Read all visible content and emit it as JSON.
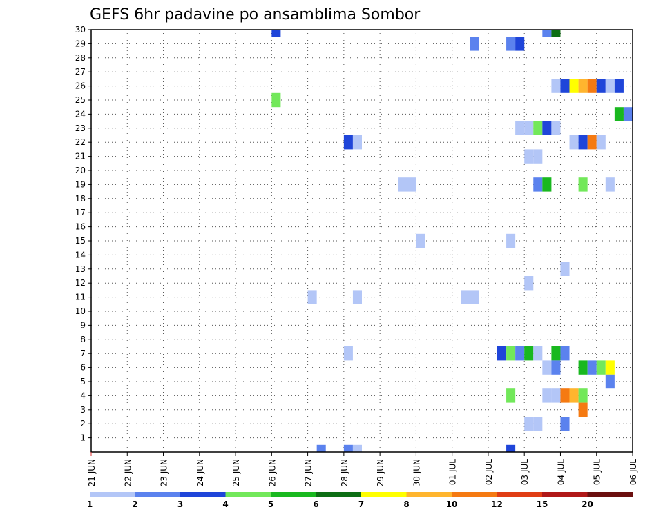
{
  "chart_data": {
    "type": "heatmap",
    "title": "GEFS 6hr padavine po ansamblima Sombor",
    "xlabel": "",
    "ylabel": "",
    "x_tick_labels": [
      "21 JUN",
      "22 JUN",
      "23 JUN",
      "24 JUN",
      "25 JUN",
      "26 JUN",
      "27 JUN",
      "28 JUN",
      "29 JUN",
      "30 JUN",
      "01 JUL",
      "02 JUL",
      "03 JUL",
      "04 JUL",
      "05 JUL",
      "06 JUL"
    ],
    "y_tick_labels": [
      "1",
      "2",
      "3",
      "4",
      "5",
      "6",
      "7",
      "8",
      "9",
      "10",
      "11",
      "12",
      "13",
      "14",
      "15",
      "16",
      "17",
      "18",
      "19",
      "20",
      "21",
      "22",
      "23",
      "24",
      "25",
      "26",
      "27",
      "28",
      "29",
      "30"
    ],
    "x_range_days": [
      0,
      15
    ],
    "x_step_hours": 6,
    "y_range": [
      0,
      30
    ],
    "grid": true,
    "colorbar": {
      "labels": [
        "1",
        "2",
        "3",
        "4",
        "5",
        "6",
        "7",
        "8",
        "10",
        "12",
        "15",
        "20"
      ],
      "colors": [
        "#b3c6f7",
        "#5b82ee",
        "#1f45d9",
        "#72e85a",
        "#19b81f",
        "#0d6e14",
        "#ffff00",
        "#ffb52e",
        "#f57a12",
        "#e03d14",
        "#b01818",
        "#6b0f0f"
      ]
    },
    "cells": [
      {
        "member": 30,
        "t": 20,
        "c": 2
      },
      {
        "member": 30,
        "t": 50,
        "c": 1
      },
      {
        "member": 30,
        "t": 51,
        "c": 5
      },
      {
        "member": 29,
        "t": 42,
        "c": 1
      },
      {
        "member": 29,
        "t": 46,
        "c": 1
      },
      {
        "member": 29,
        "t": 47,
        "c": 2
      },
      {
        "member": 26,
        "t": 51,
        "c": 0
      },
      {
        "member": 26,
        "t": 52,
        "c": 2
      },
      {
        "member": 26,
        "t": 53,
        "c": 6
      },
      {
        "member": 26,
        "t": 54,
        "c": 7
      },
      {
        "member": 26,
        "t": 55,
        "c": 8
      },
      {
        "member": 26,
        "t": 56,
        "c": 2
      },
      {
        "member": 26,
        "t": 57,
        "c": 0
      },
      {
        "member": 26,
        "t": 58,
        "c": 2
      },
      {
        "member": 26,
        "t": 60,
        "c": 4
      },
      {
        "member": 25,
        "t": 20,
        "c": 3
      },
      {
        "member": 24,
        "t": 58,
        "c": 4
      },
      {
        "member": 24,
        "t": 59,
        "c": 1
      },
      {
        "member": 24,
        "t": 60,
        "c": 4
      },
      {
        "member": 24,
        "t": 61,
        "c": 3
      },
      {
        "member": 23,
        "t": 47,
        "c": 0
      },
      {
        "member": 23,
        "t": 48,
        "c": 0
      },
      {
        "member": 23,
        "t": 49,
        "c": 3
      },
      {
        "member": 23,
        "t": 50,
        "c": 2
      },
      {
        "member": 23,
        "t": 51,
        "c": 0
      },
      {
        "member": 22,
        "t": 28,
        "c": 2
      },
      {
        "member": 22,
        "t": 29,
        "c": 0
      },
      {
        "member": 22,
        "t": 53,
        "c": 0
      },
      {
        "member": 22,
        "t": 54,
        "c": 2
      },
      {
        "member": 22,
        "t": 55,
        "c": 8
      },
      {
        "member": 22,
        "t": 56,
        "c": 0
      },
      {
        "member": 21,
        "t": 48,
        "c": 0
      },
      {
        "member": 21,
        "t": 49,
        "c": 0
      },
      {
        "member": 19,
        "t": 34,
        "c": 0
      },
      {
        "member": 19,
        "t": 35,
        "c": 0
      },
      {
        "member": 19,
        "t": 49,
        "c": 1
      },
      {
        "member": 19,
        "t": 50,
        "c": 4
      },
      {
        "member": 19,
        "t": 54,
        "c": 3
      },
      {
        "member": 19,
        "t": 57,
        "c": 0
      },
      {
        "member": 16,
        "t": 60,
        "c": 0
      },
      {
        "member": 15,
        "t": 36,
        "c": 0
      },
      {
        "member": 15,
        "t": 46,
        "c": 0
      },
      {
        "member": 13,
        "t": 52,
        "c": 0
      },
      {
        "member": 12,
        "t": 48,
        "c": 0
      },
      {
        "member": 11,
        "t": 24,
        "c": 0
      },
      {
        "member": 11,
        "t": 29,
        "c": 0
      },
      {
        "member": 11,
        "t": 41,
        "c": 0
      },
      {
        "member": 11,
        "t": 42,
        "c": 0
      },
      {
        "member": 7,
        "t": 28,
        "c": 0
      },
      {
        "member": 7,
        "t": 45,
        "c": 2
      },
      {
        "member": 7,
        "t": 46,
        "c": 3
      },
      {
        "member": 7,
        "t": 47,
        "c": 1
      },
      {
        "member": 7,
        "t": 48,
        "c": 4
      },
      {
        "member": 7,
        "t": 49,
        "c": 0
      },
      {
        "member": 7,
        "t": 51,
        "c": 4
      },
      {
        "member": 7,
        "t": 52,
        "c": 1
      },
      {
        "member": 6,
        "t": 50,
        "c": 0
      },
      {
        "member": 6,
        "t": 51,
        "c": 1
      },
      {
        "member": 6,
        "t": 54,
        "c": 4
      },
      {
        "member": 6,
        "t": 55,
        "c": 1
      },
      {
        "member": 6,
        "t": 56,
        "c": 3
      },
      {
        "member": 6,
        "t": 57,
        "c": 6
      },
      {
        "member": 5,
        "t": 57,
        "c": 1
      },
      {
        "member": 4,
        "t": 46,
        "c": 3
      },
      {
        "member": 4,
        "t": 50,
        "c": 0
      },
      {
        "member": 4,
        "t": 51,
        "c": 0
      },
      {
        "member": 4,
        "t": 52,
        "c": 8
      },
      {
        "member": 4,
        "t": 53,
        "c": 7
      },
      {
        "member": 4,
        "t": 54,
        "c": 3
      },
      {
        "member": 3,
        "t": 54,
        "c": 8
      },
      {
        "member": 2,
        "t": 48,
        "c": 0
      },
      {
        "member": 2,
        "t": 49,
        "c": 0
      },
      {
        "member": 2,
        "t": 52,
        "c": 1
      },
      {
        "member": 0,
        "t": 25,
        "c": 1
      },
      {
        "member": 0,
        "t": 28,
        "c": 1
      },
      {
        "member": 0,
        "t": 29,
        "c": 0
      },
      {
        "member": 0,
        "t": 46,
        "c": 2
      }
    ]
  }
}
